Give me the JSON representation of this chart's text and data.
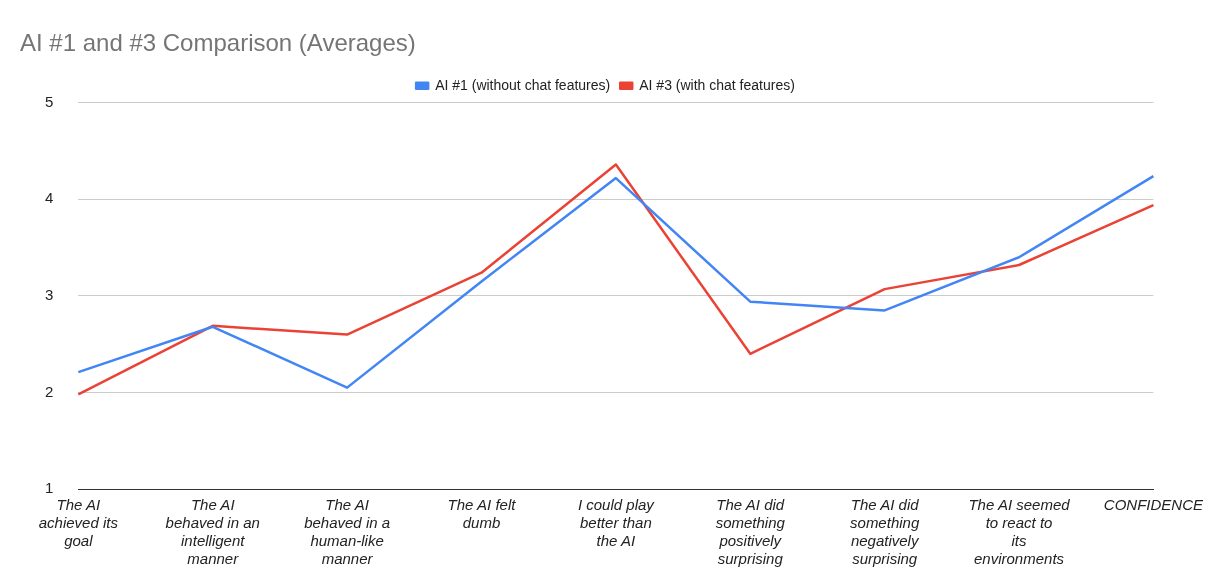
{
  "chart_data": {
    "type": "line",
    "title": "AI #1 and #3 Comparison (Averages)",
    "categories": [
      "The AI achieved its goal",
      "The AI behaved in an intelligent manner",
      "The AI behaved in a human-like manner",
      "The AI felt dumb",
      "I could play better than the AI",
      "The AI did something positively surprising",
      "The AI did something negatively surprising",
      "The AI seemed to react to its environments",
      "CONFIDENCE"
    ],
    "series": [
      {
        "name": "AI #1 (without chat features)",
        "color": "#4285f4",
        "values": [
          2.21,
          2.68,
          2.05,
          3.15,
          4.22,
          2.94,
          2.85,
          3.4,
          4.24
        ]
      },
      {
        "name": "AI #3 (with chat features)",
        "color": "#ea4335",
        "values": [
          1.98,
          2.69,
          2.6,
          3.24,
          4.36,
          2.4,
          3.07,
          3.32,
          3.94
        ]
      }
    ],
    "ylim": [
      1,
      5
    ],
    "yticks": [
      1,
      2,
      3,
      4,
      5
    ],
    "grid": "y",
    "legend": "top",
    "marker": "none",
    "line_style": "solid"
  }
}
